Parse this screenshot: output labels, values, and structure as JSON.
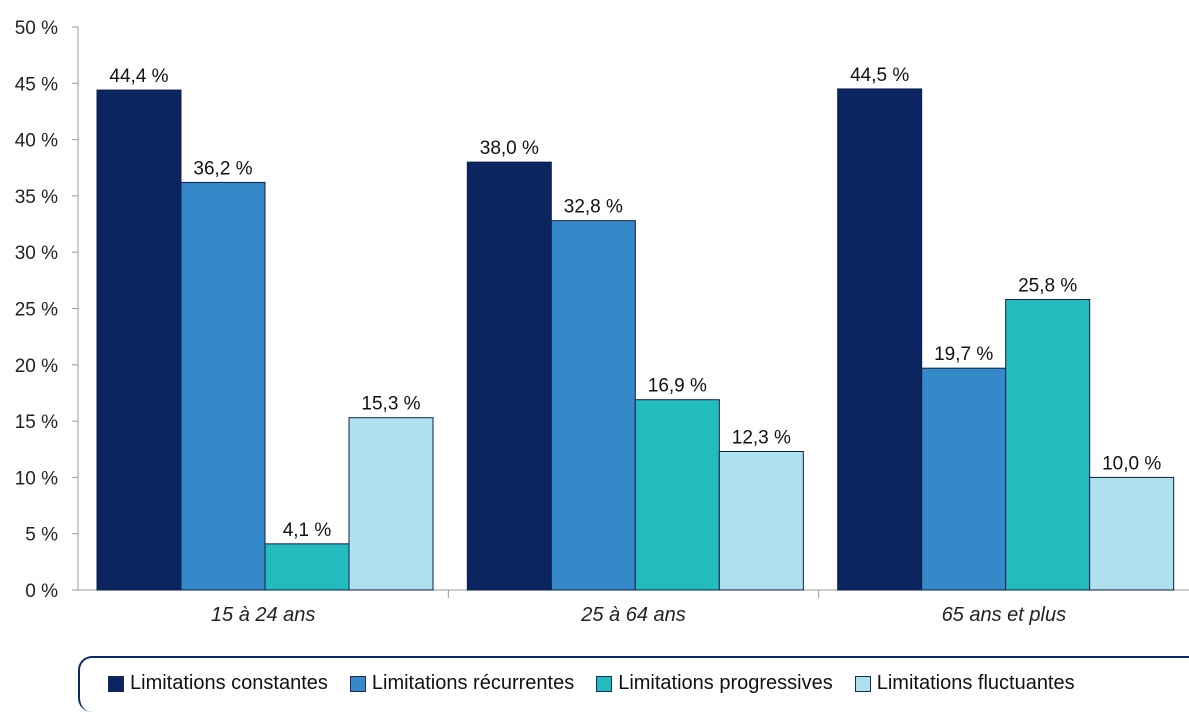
{
  "chart_data": {
    "type": "bar",
    "categories": [
      "15 à 24 ans",
      "25 à 64 ans",
      "65 ans et plus"
    ],
    "series": [
      {
        "name": "Limitations constantes",
        "color": "#0b2560",
        "values": [
          44.4,
          38.0,
          44.5
        ],
        "labels": [
          "44,4 %",
          "38,0 %",
          "44,5 %"
        ]
      },
      {
        "name": "Limitations récurrentes",
        "color": "#3589c9",
        "values": [
          36.2,
          32.8,
          19.7
        ],
        "labels": [
          "36,2 %",
          "32,8 %",
          "19,7 %"
        ]
      },
      {
        "name": "Limitations progressives",
        "color": "#22bcbf",
        "values": [
          4.1,
          16.9,
          25.8
        ],
        "labels": [
          "4,1 %",
          "16,9 %",
          "25,8 %"
        ]
      },
      {
        "name": "Limitations fluctuantes",
        "color": "#aee0ee",
        "values": [
          15.3,
          12.3,
          10.0
        ],
        "labels": [
          "15,3 %",
          "12,3 %",
          "10,0 %"
        ]
      }
    ],
    "ylim": [
      0,
      50
    ],
    "yticks": [
      "0 %",
      "5 %",
      "10 %",
      "15 %",
      "20 %",
      "25 %",
      "30 %",
      "35 %",
      "40 %",
      "45 %",
      "50 %"
    ],
    "grid": false,
    "legend_position": "bottom",
    "title": "",
    "xlabel": "",
    "ylabel": ""
  }
}
